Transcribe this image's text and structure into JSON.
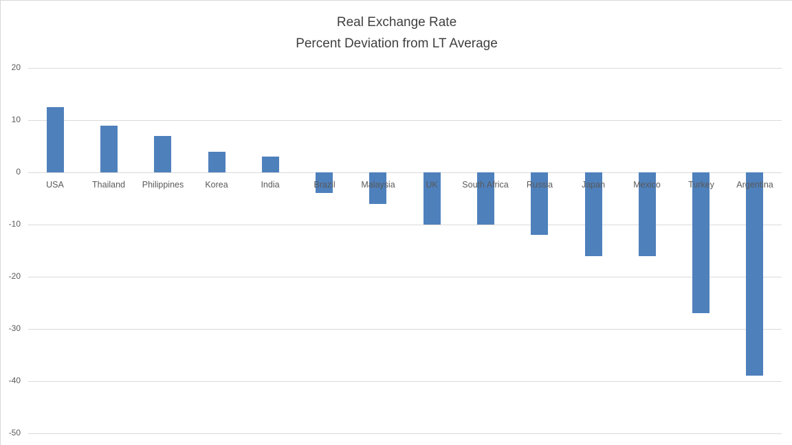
{
  "chart_data": {
    "type": "bar",
    "title": "Real Exchange Rate",
    "subtitle": "Percent Deviation from LT Average",
    "categories": [
      "USA",
      "Thailand",
      "Philippines",
      "Korea",
      "India",
      "Brazil",
      "Malaysia",
      "UK",
      "South Africa",
      "Russia",
      "Japan",
      "Mexico",
      "Turkey",
      "Argentina"
    ],
    "values": [
      12.5,
      9,
      7,
      4,
      3,
      -4,
      -6,
      -10,
      -10,
      -12,
      -16,
      -16,
      -27,
      -39
    ],
    "xlabel": "",
    "ylabel": "",
    "ylim": [
      -50,
      20
    ],
    "yticks": [
      20,
      10,
      0,
      -10,
      -20,
      -30,
      -40,
      -50
    ],
    "grid": true,
    "legend": false,
    "colors": {
      "bar": "#4e80bc",
      "gridline": "#d9d9d9",
      "axis_labels": "#595959",
      "title": "#3f3f3f",
      "background": "#ffffff"
    }
  }
}
